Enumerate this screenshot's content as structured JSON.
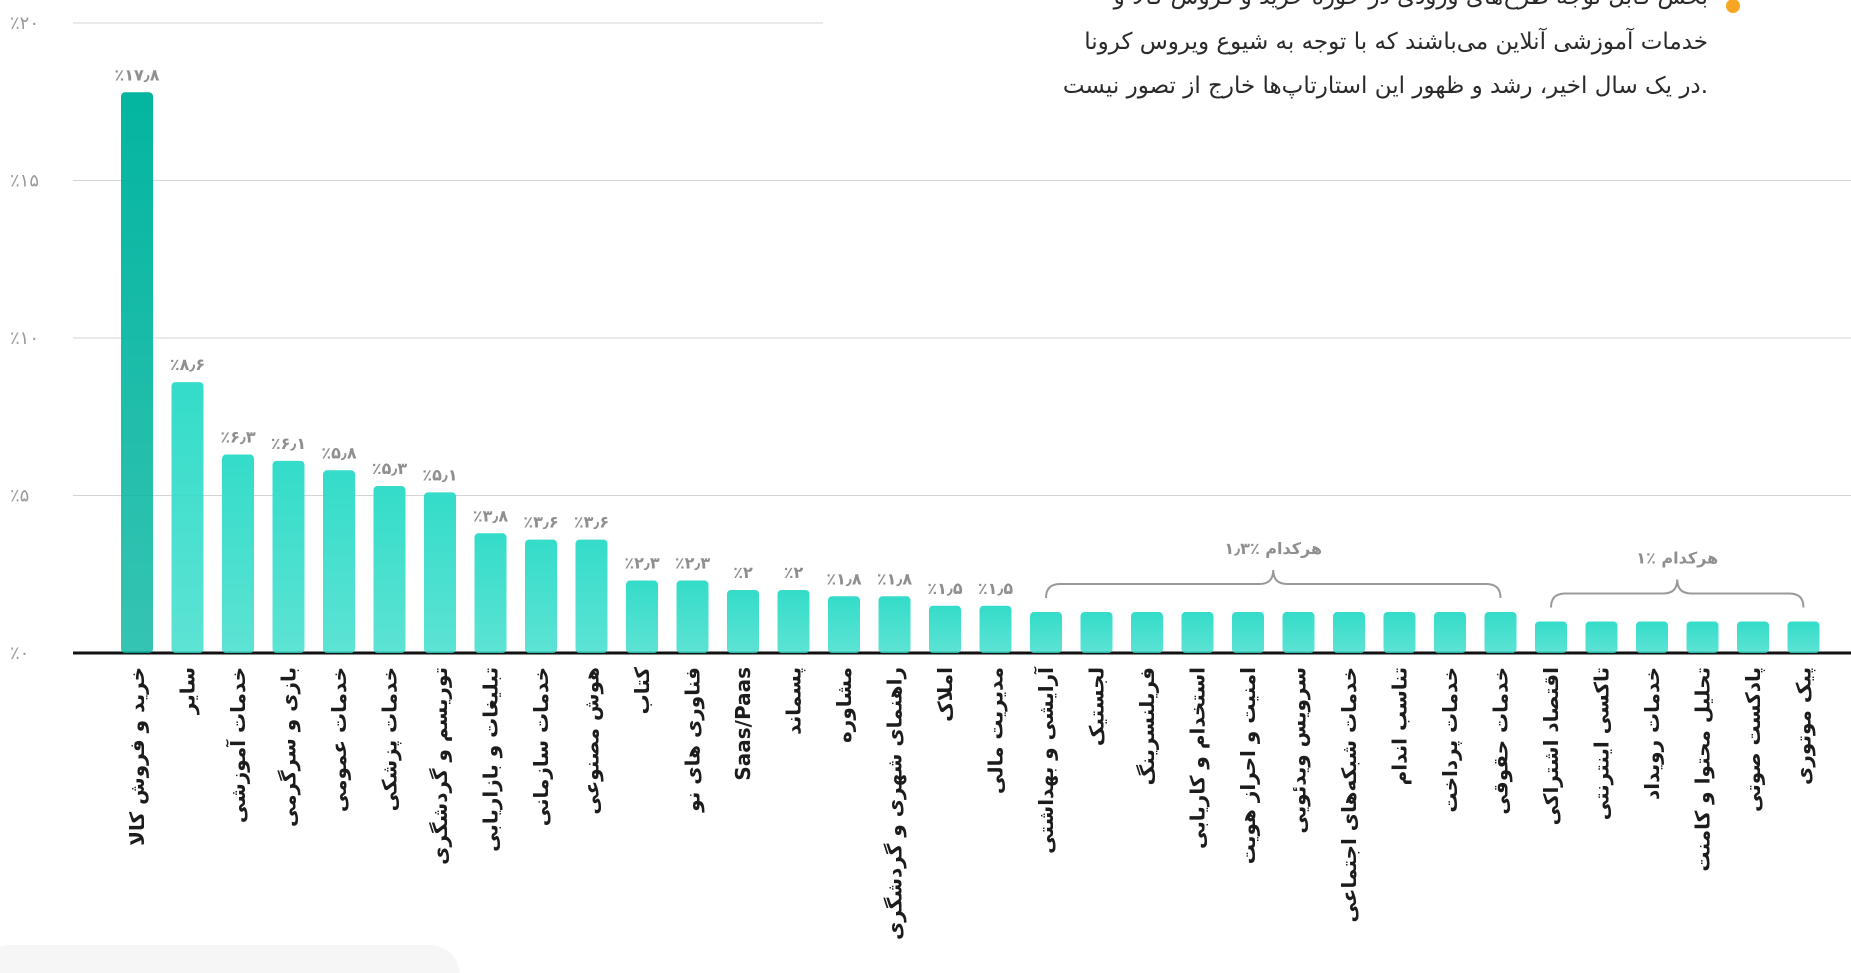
{
  "chart_data": {
    "type": "bar",
    "text_lines": [
      "بخش قابل توجه طرح‌های ورودی در حوزه خرید و فروش کالا و",
      "خدمات آموزشی آنلاین می‌باشند که با توجه به شیوع ویروس کرونا",
      "در یک سال اخیر، رشد و ظهور این استارتاپ‌ها خارج از تصور نیست."
    ],
    "categories": [
      "خرید و فروش کالا",
      "سایر",
      "خدمات آموزشی",
      "بازی و سرگرمی",
      "خدمات عمومی",
      "خدمات پزشکی",
      "توریسم و گردشگری",
      "تبلیغات و بازاریابی",
      "خدمات سازمانی",
      "هوش مصنوعی",
      "کتاب",
      "فناوری های نو",
      "Saas/Paas",
      "پسماند",
      "مشاوره",
      "راهنمای شهری و گردشگری",
      "املاک",
      "مدیریت مالی",
      "آرایشی و بهداشتی",
      "لجستیک",
      "فریلنسرینگ",
      "استخدام و کاریابی",
      "امنیت و احراز هویت",
      "سرویس ویدئویی",
      "خدمات شبکه‌های اجتماعی",
      "تناسب اندام",
      "خدمات پرداخت",
      "خدمات حقوقی",
      "اقتصاد اشتراکی",
      "تاکسی اینترنتی",
      "خدمات رویداد",
      "تحلیل محتوا و کامنت",
      "پادکست صوتی",
      "پیک موتوری"
    ],
    "values": [
      17.8,
      8.6,
      6.3,
      6.1,
      5.8,
      5.3,
      5.1,
      3.8,
      3.6,
      3.6,
      2.3,
      2.3,
      2,
      2,
      1.8,
      1.8,
      1.5,
      1.5,
      1.3,
      1.3,
      1.3,
      1.3,
      1.3,
      1.3,
      1.3,
      1.3,
      1.3,
      1.3,
      1,
      1,
      1,
      1,
      1,
      1
    ],
    "value_labels": [
      "٪۱۷٫۸",
      "٪۸٫۶",
      "٪۶٫۳",
      "٪۶٫۱",
      "٪۵٫۸",
      "٪۵٫۳",
      "٪۵٫۱",
      "٪۳٫۸",
      "٪۳٫۶",
      "٪۳٫۶",
      "٪۲٫۳",
      "٪۲٫۳",
      "٪۲",
      "٪۲",
      "٪۱٫۸",
      "٪۱٫۸",
      "٪۱٫۵",
      "٪۱٫۵",
      null,
      null,
      null,
      null,
      null,
      null,
      null,
      null,
      null,
      null,
      null,
      null,
      null,
      null,
      null,
      null
    ],
    "group_annotations": [
      "هرکدام ٪۱٫۳",
      "هرکدام ٪۱"
    ],
    "color": "#34dcc9",
    "highlight_color": "#03b5a0",
    "ylim": [
      0,
      20
    ],
    "yticks": [
      {
        "value": 0,
        "label": "٪۰"
      },
      {
        "value": 5,
        "label": "٪۵"
      },
      {
        "value": 10,
        "label": "٪۱۰"
      },
      {
        "value": 15,
        "label": "٪۱۵"
      },
      {
        "value": 20,
        "label": "٪۲۰"
      }
    ],
    "grid": true
  }
}
